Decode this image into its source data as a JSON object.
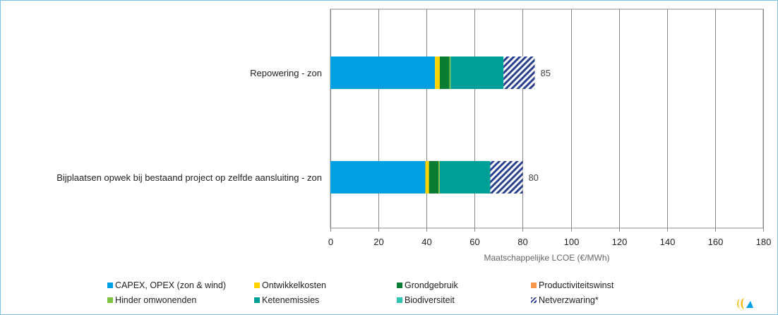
{
  "chart_data": {
    "type": "bar",
    "orientation": "horizontal",
    "stacked": true,
    "categories": [
      "Repowering - zon",
      "Bijplaatsen opwek bij bestaand project op zelfde aansluiting - zon"
    ],
    "series": [
      {
        "name": "CAPEX, OPEX (zon & wind)",
        "color": "#00a0e3",
        "pattern": "solid",
        "values": [
          43.5,
          39.5
        ]
      },
      {
        "name": "Ontwikkelkosten",
        "color": "#ffd400",
        "pattern": "solid",
        "values": [
          2,
          1.5
        ]
      },
      {
        "name": "Grondgebruik",
        "color": "#0a7d32",
        "pattern": "solid",
        "values": [
          4,
          4
        ]
      },
      {
        "name": "Productiviteitswinst",
        "color": "#f7964a",
        "pattern": "solid",
        "values": [
          0,
          0
        ]
      },
      {
        "name": "Hinder omwonenden",
        "color": "#7ec242",
        "pattern": "solid",
        "values": [
          0.5,
          0.5
        ]
      },
      {
        "name": "Ketenemissies",
        "color": "#00a099",
        "pattern": "solid",
        "values": [
          22,
          21
        ]
      },
      {
        "name": "Biodiversiteit",
        "color": "#2ec4b0",
        "pattern": "solid",
        "values": [
          0,
          0
        ]
      },
      {
        "name": "Netverzwaring*",
        "color": "#2b3f8f",
        "pattern": "hatched",
        "values": [
          13,
          13.5
        ]
      }
    ],
    "totals": [
      "85",
      "80"
    ],
    "xlabel": "Maatschappelijke LCOE (€/MWh)",
    "xlim": [
      0,
      180
    ],
    "xticks": [
      "0",
      "20",
      "40",
      "60",
      "80",
      "100",
      "120",
      "140",
      "160",
      "180"
    ],
    "grid": true,
    "legend_position": "bottom"
  }
}
